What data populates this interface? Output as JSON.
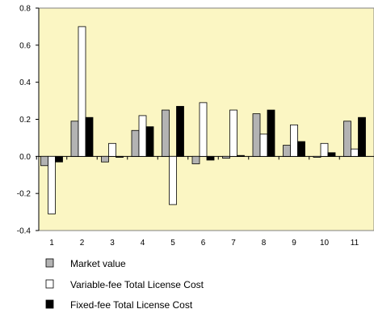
{
  "chart_data": {
    "type": "bar",
    "title": "",
    "xlabel": "",
    "ylabel": "",
    "ylim": [
      -0.4,
      0.8
    ],
    "yticks": [
      -0.4,
      -0.2,
      0.0,
      0.2,
      0.4,
      0.6,
      0.8
    ],
    "ytick_labels": [
      "-0.4",
      "-0.2",
      "0.0",
      "0.2",
      "0.4",
      "0.6",
      "0.8"
    ],
    "categories": [
      "1",
      "2",
      "3",
      "4",
      "5",
      "6",
      "7",
      "8",
      "9",
      "10",
      "11"
    ],
    "series": [
      {
        "name": "Market value",
        "color": "#b3b3b3",
        "values": [
          -0.05,
          0.19,
          -0.03,
          0.14,
          0.25,
          -0.04,
          -0.01,
          0.23,
          0.06,
          -0.005,
          0.19
        ]
      },
      {
        "name": "Variable-fee Total License Cost",
        "color": "#ffffff",
        "values": [
          -0.31,
          0.7,
          0.07,
          0.22,
          -0.26,
          0.29,
          0.25,
          0.12,
          0.17,
          0.07,
          0.04
        ]
      },
      {
        "name": "Fixed-fee Total License Cost",
        "color": "#000000",
        "values": [
          -0.03,
          0.21,
          -0.005,
          0.16,
          0.27,
          -0.02,
          0.005,
          0.25,
          0.08,
          0.02,
          0.21
        ]
      }
    ],
    "plot_background": "#fbf6c3",
    "grid": false,
    "legend_position": "bottom-left"
  }
}
